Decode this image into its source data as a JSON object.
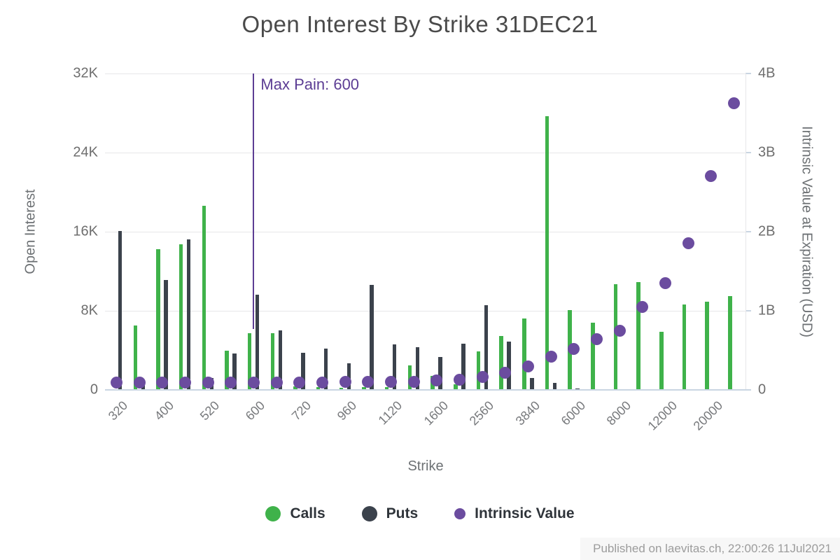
{
  "title": "Open Interest By Strike 31DEC21",
  "max_pain": {
    "label": "Max Pain: 600",
    "strike": "600",
    "category_index": 6
  },
  "axes": {
    "left": {
      "title": "Open Interest",
      "max": 32000,
      "ticks": [
        {
          "label": "0",
          "v": 0
        },
        {
          "label": "8K",
          "v": 8000
        },
        {
          "label": "16K",
          "v": 16000
        },
        {
          "label": "24K",
          "v": 24000
        },
        {
          "label": "32K",
          "v": 32000
        }
      ]
    },
    "right": {
      "title": "Intrinsic Value at Expiration (USD)",
      "max": 4,
      "ticks": [
        {
          "label": "0",
          "v": 0
        },
        {
          "label": "1B",
          "v": 1
        },
        {
          "label": "2B",
          "v": 2
        },
        {
          "label": "3B",
          "v": 3
        },
        {
          "label": "4B",
          "v": 4
        }
      ]
    },
    "x": {
      "title": "Strike"
    }
  },
  "legend": [
    {
      "label": "Calls",
      "color": "#3fb24a"
    },
    {
      "label": "Puts",
      "color": "#3b424c"
    },
    {
      "label": "Intrinsic Value",
      "color": "#6b4c9f"
    }
  ],
  "footer": "Published on laevitas.ch, 22:00:26 11Jul2021",
  "colors": {
    "calls": "#3fb24a",
    "puts": "#3b424c",
    "intrinsic": "#6b4c9f",
    "max_pain": "#5c3d94",
    "grid": "#e7e7e9",
    "axis_line": "#c9d5e2"
  },
  "chart_data": {
    "type": "bar",
    "x_tick_labels_shown": [
      "320",
      "400",
      "520",
      "600",
      "720",
      "960",
      "1120",
      "1600",
      "2560",
      "3840",
      "6000",
      "8000",
      "12000",
      "20000"
    ],
    "categories": [
      "320",
      "",
      "400",
      "",
      "520",
      "",
      "600",
      "",
      "720",
      "",
      "960",
      "",
      "1120",
      "",
      "1600",
      "",
      "2560",
      "",
      "3840",
      "",
      "6000",
      "",
      "8000",
      "",
      "12000",
      "",
      "20000",
      ""
    ],
    "series": [
      {
        "name": "Calls",
        "type": "bar",
        "axis": "left",
        "color": "#3fb24a",
        "values": [
          0,
          6500,
          14200,
          14700,
          18600,
          4000,
          5700,
          5700,
          350,
          300,
          200,
          300,
          250,
          2500,
          1400,
          600,
          3900,
          5450,
          7200,
          27700,
          8100,
          6800,
          10700,
          10900,
          5900,
          8650,
          8900,
          9500
        ]
      },
      {
        "name": "Puts",
        "type": "bar",
        "axis": "left",
        "color": "#3b424c",
        "values": [
          16100,
          500,
          11100,
          15200,
          1200,
          3700,
          9600,
          6000,
          3750,
          4150,
          2700,
          10600,
          4600,
          4300,
          3300,
          4700,
          8600,
          4850,
          1200,
          700,
          150,
          100,
          0,
          0,
          0,
          0,
          0,
          0
        ]
      },
      {
        "name": "Intrinsic Value",
        "type": "scatter",
        "axis": "right",
        "unit": "B",
        "color": "#6b4c9f",
        "values": [
          0.09,
          0.09,
          0.09,
          0.09,
          0.09,
          0.09,
          0.09,
          0.09,
          0.095,
          0.095,
          0.1,
          0.1,
          0.1,
          0.105,
          0.12,
          0.125,
          0.16,
          0.22,
          0.3,
          0.42,
          0.52,
          0.64,
          0.75,
          1.05,
          1.35,
          1.85,
          2.7,
          3.62
        ]
      }
    ],
    "title": "Open Interest By Strike 31DEC21",
    "xlabel": "Strike",
    "ylabel_left": "Open Interest",
    "ylabel_right": "Intrinsic Value at Expiration (USD)",
    "ylim_left": [
      0,
      32000
    ],
    "ylim_right": [
      0,
      4
    ],
    "grid": true,
    "legend_position": "bottom",
    "annotation": {
      "text": "Max Pain: 600",
      "at_category": "600"
    }
  }
}
